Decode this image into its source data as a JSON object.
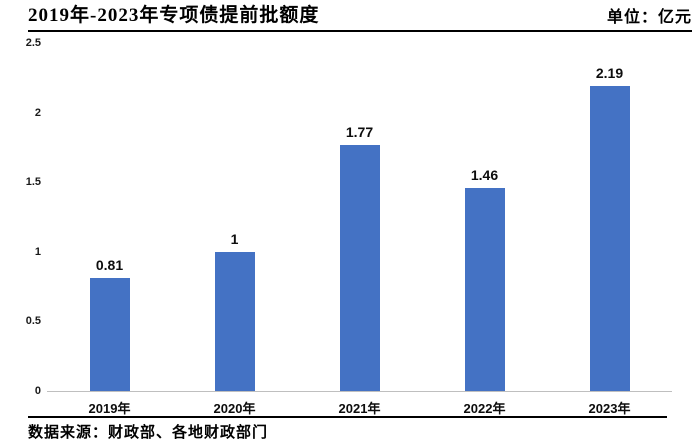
{
  "header": {
    "title": "2019年-2023年专项债提前批额度",
    "unit_label": "单位：亿元"
  },
  "footer": {
    "source": "数据来源：财政部、各地财政部门"
  },
  "colors": {
    "bar": "#4472C4",
    "axis_line": "#BFBFBF",
    "text": "#000000",
    "background": "#FFFFFF"
  },
  "chart_data": {
    "type": "bar",
    "title": "2019年-2023年专项债提前批额度",
    "unit": "亿元",
    "categories": [
      "2019年",
      "2020年",
      "2021年",
      "2022年",
      "2023年"
    ],
    "values": [
      0.81,
      1,
      1.77,
      1.46,
      2.19
    ],
    "value_labels": [
      "0.81",
      "1",
      "1.77",
      "1.46",
      "2.19"
    ],
    "ytick_labels": [
      "0",
      "0.5",
      "1",
      "1.5",
      "2",
      "2.5"
    ],
    "yticks": [
      0,
      0.5,
      1,
      1.5,
      2,
      2.5
    ],
    "ylim": [
      0,
      2.5
    ],
    "grid": false,
    "legend": null,
    "bar_color": "#4472C4",
    "source": "数据来源：财政部、各地财政部门"
  }
}
